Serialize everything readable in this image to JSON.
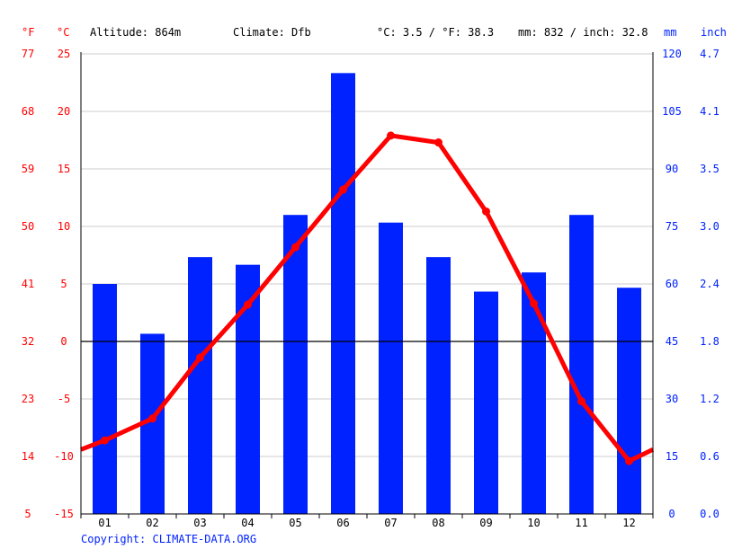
{
  "header": {
    "unit_f": "°F",
    "unit_c": "°C",
    "altitude": "Altitude: 864m",
    "climate": "Climate: Dfb",
    "avg_temp": "°C: 3.5 / °F: 38.3",
    "precip": "mm: 832 / inch: 32.8",
    "unit_mm": "mm",
    "unit_inch": "inch"
  },
  "copyright": "Copyright: CLIMATE-DATA.ORG",
  "colors": {
    "temperature": "#ff0000",
    "precipitation": "#0022ff",
    "left_axis_text": "#ff0000",
    "right_axis_text": "#0022ff",
    "grid": "#cccccc",
    "zero_line": "#000000",
    "text": "#000000"
  },
  "chart_data": {
    "type": "bar+line",
    "categories": [
      "01",
      "02",
      "03",
      "04",
      "05",
      "06",
      "07",
      "08",
      "09",
      "10",
      "11",
      "12"
    ],
    "series": [
      {
        "name": "",
        "type": "bar",
        "axis": "right",
        "unit": "mm",
        "values": [
          60,
          47,
          67,
          65,
          78,
          115,
          76,
          67,
          58,
          63,
          78,
          59
        ]
      },
      {
        "name": "",
        "type": "line",
        "axis": "left",
        "unit": "°C",
        "values": [
          -8.6,
          -6.7,
          -1.4,
          3.2,
          8.2,
          13.2,
          17.9,
          17.3,
          11.3,
          3.3,
          -5.2,
          -10.4
        ],
        "edge_start": -9.4,
        "edge_end": -9.4
      }
    ],
    "y_left_c": {
      "min": -15,
      "max": 25,
      "ticks": [
        "25",
        "20",
        "15",
        "10",
        "5",
        "0",
        "-5",
        "-10",
        "-15"
      ]
    },
    "y_left_f": {
      "ticks": [
        "77",
        "68",
        "59",
        "50",
        "41",
        "32",
        "23",
        "14",
        "5"
      ]
    },
    "y_right_mm": {
      "min": 0,
      "max": 120,
      "ticks": [
        "120",
        "105",
        "90",
        "75",
        "60",
        "45",
        "30",
        "15",
        "0"
      ]
    },
    "y_right_inch": {
      "ticks": [
        "4.7",
        "4.1",
        "3.5",
        "3.0",
        "2.4",
        "1.8",
        "1.2",
        "0.6",
        "0.0"
      ]
    },
    "grid": true
  }
}
